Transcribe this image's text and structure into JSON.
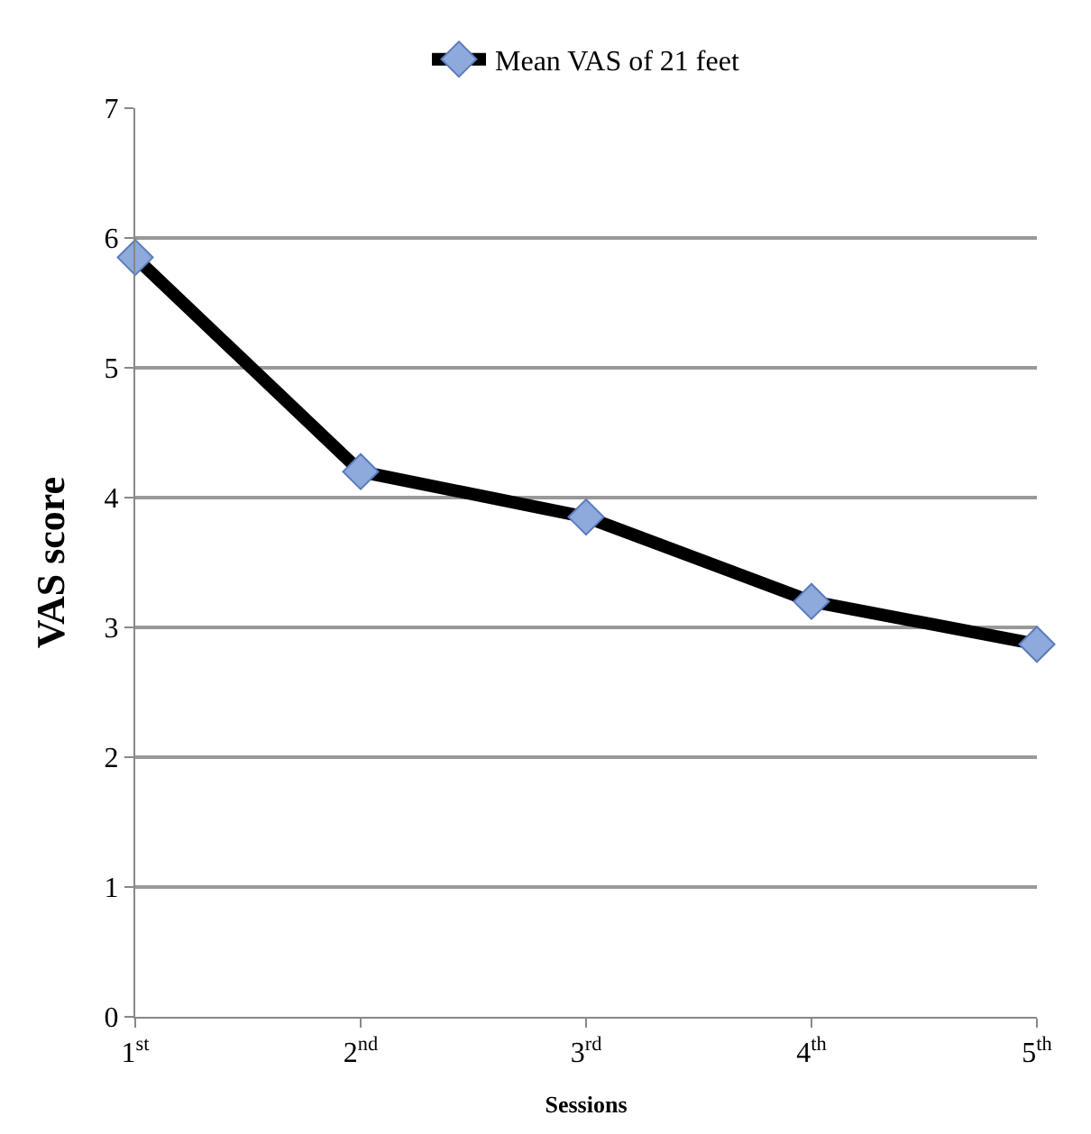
{
  "chart_data": {
    "type": "line",
    "xlabel": "Sessions",
    "ylabel": "VAS score",
    "categories": [
      "1$^{st}$",
      "2$^{nd}$",
      "3$^{rd}$",
      "4$^{th}$",
      "5$^{th}$"
    ],
    "series": [
      {
        "name": "Mean VAS of 21 feet",
        "color": "#000000",
        "values": [
          5.85,
          4.2,
          3.85,
          3.2,
          2.87
        ]
      }
    ],
    "ylim": [
      0,
      7
    ],
    "yticks": [
      0,
      1,
      2,
      3,
      4,
      5,
      6,
      7
    ],
    "grid": "y",
    "legend": "top",
    "marker": "diamond",
    "line_style": "solid"
  }
}
